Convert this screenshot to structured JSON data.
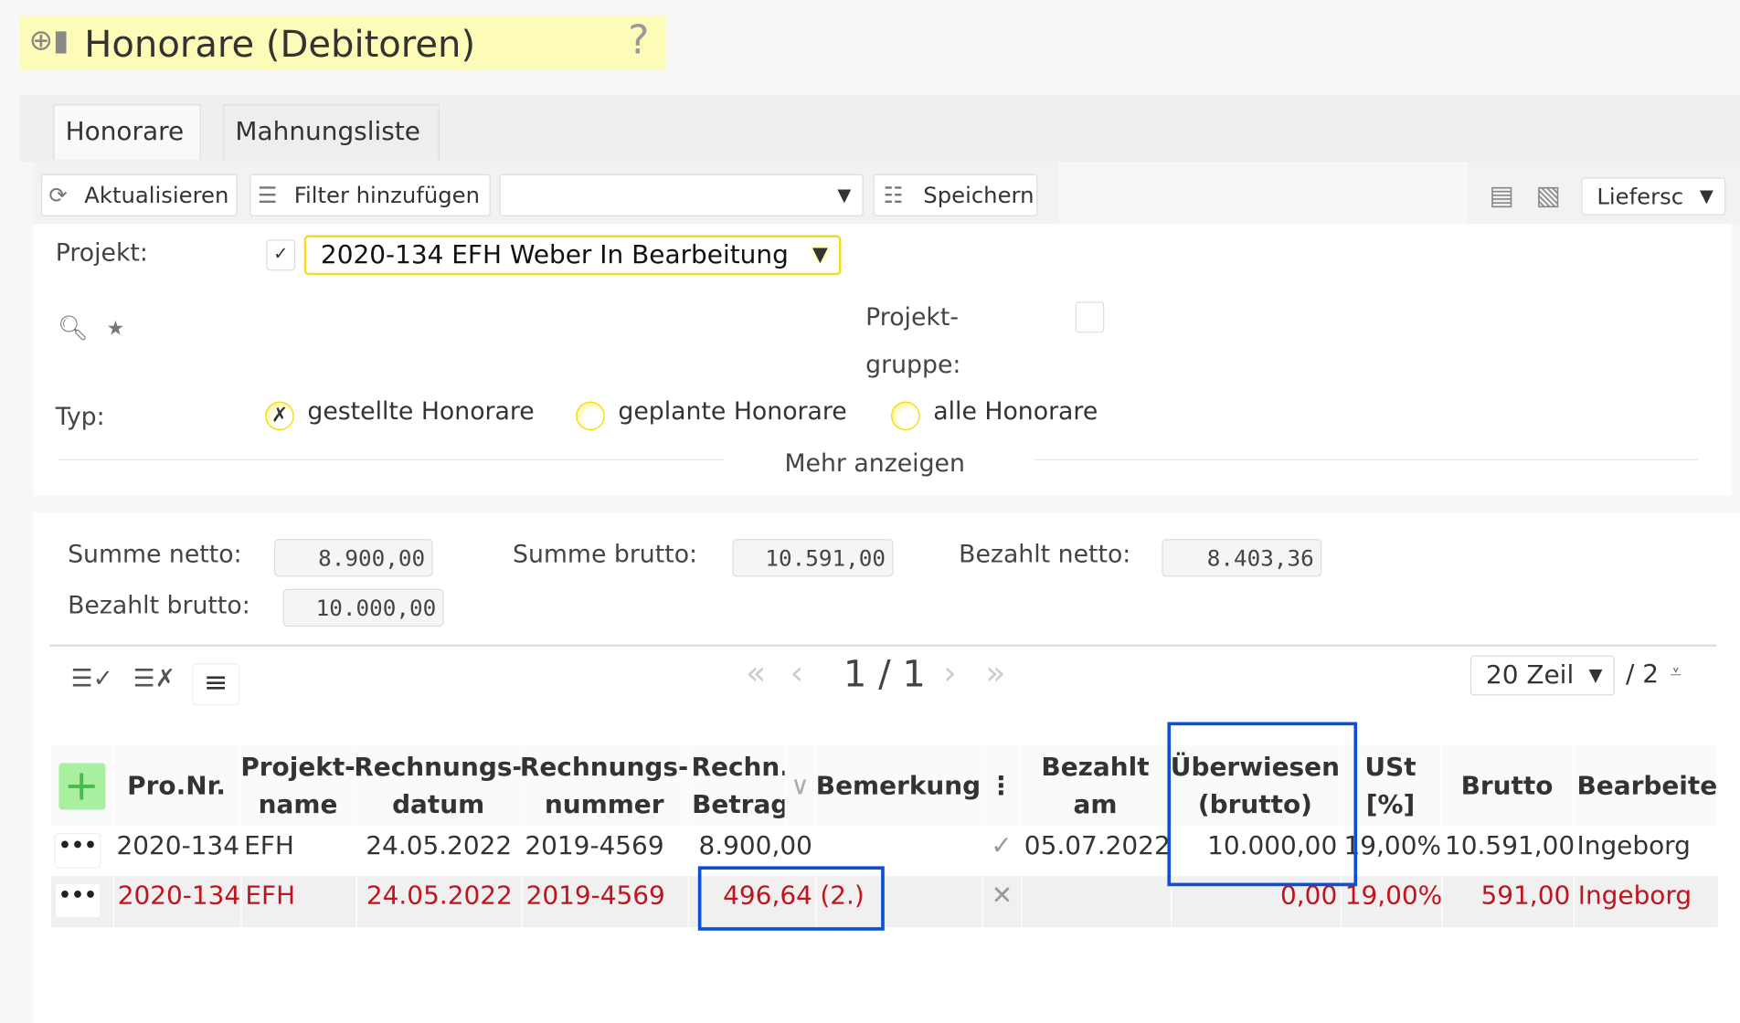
{
  "header": {
    "title": "Honorare (Debitoren)",
    "icon": "coins-chart-icon",
    "help_icon": "question-icon"
  },
  "tabs": [
    {
      "label": "Honorare",
      "active": true
    },
    {
      "label": "Mahnungsliste",
      "active": false
    }
  ],
  "toolbar": {
    "refresh": "Aktualisieren",
    "add_filter": "Filter hinzufügen",
    "filter_select": "",
    "save": "Speichern",
    "export_select": "Liefersc"
  },
  "filters": {
    "projekt_label": "Projekt:",
    "projekt_checked": true,
    "projekt_value": "2020-134 EFH Weber In Bearbeitung",
    "projektgruppe_label_1": "Projekt-",
    "projektgruppe_label_2": "gruppe:",
    "projektgruppe_checked": false,
    "typ_label": "Typ:",
    "typ_options": [
      "gestellte Honorare",
      "geplante Honorare",
      "alle Honorare"
    ],
    "typ_selected": "gestellte Honorare",
    "more": "Mehr anzeigen"
  },
  "summary": {
    "summe_netto_label": "Summe netto:",
    "summe_netto": "8.900,00",
    "summe_brutto_label": "Summe brutto:",
    "summe_brutto": "10.591,00",
    "bezahlt_netto_label": "Bezahlt netto:",
    "bezahlt_netto": "8.403,36",
    "bezahlt_brutto_label": "Bezahlt brutto:",
    "bezahlt_brutto": "10.000,00"
  },
  "pagination": {
    "page": "1 / 1",
    "rows": "20 Zeil",
    "cols": "/ 2"
  },
  "table": {
    "headers": {
      "pronr": "Pro.Nr.",
      "projektname": "Projekt- name",
      "rechnungsdatum": "Rechnungs- datum",
      "rechnungsnummer": "Rechnungs- nummer",
      "betrag": "Rechn. Betrag",
      "bemerkung": "Bemerkung",
      "bezahlt_am": "Bezahlt am",
      "ueberwiesen": "Überwiesen (brutto)",
      "ust": "USt [%]",
      "brutto": "Brutto",
      "bearbeiter": "Bearbeiter"
    },
    "rows": [
      {
        "pronr": "2020-134",
        "projektname": "EFH",
        "rechnungsdatum": "24.05.2022",
        "rechnungsnummer": "2019-4569",
        "betrag": "8.900,00",
        "bemerkung": "",
        "status": "check",
        "bezahlt_am": "05.07.2022",
        "ueberwiesen": "10.000,00",
        "ust": "19,00%",
        "brutto": "10.591,00",
        "bearbeiter": "Ingeborg",
        "highlight": false
      },
      {
        "pronr": "2020-134",
        "projektname": "EFH",
        "rechnungsdatum": "24.05.2022",
        "rechnungsnummer": "2019-4569",
        "betrag": "496,64",
        "bemerkung": "(2.)",
        "status": "x",
        "bezahlt_am": "",
        "ueberwiesen": "0,00",
        "ust": "19,00%",
        "brutto": "591,00",
        "bearbeiter": "Ingeborg",
        "highlight": true
      }
    ]
  },
  "colors": {
    "title_bg": "#fdfbb8",
    "overdue_text": "#c0141e",
    "highlight_border": "#0a4fd6",
    "add_button": "#a8f0a0"
  }
}
